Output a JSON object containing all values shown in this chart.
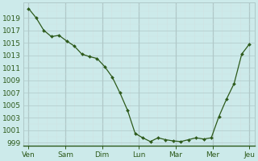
{
  "x_labels": [
    "Ven",
    "Sam",
    "Dim",
    "Lun",
    "Mar",
    "Mer",
    "Jeu"
  ],
  "values": [
    1020.5,
    1019.0,
    1017.0,
    1016.0,
    1016.2,
    1015.3,
    1014.5,
    1013.2,
    1012.8,
    1012.5,
    1011.2,
    1009.5,
    1007.0,
    1004.2,
    1000.5,
    999.8,
    999.2,
    999.8,
    999.5,
    999.3,
    999.2,
    999.5,
    999.8,
    999.6,
    999.8,
    1003.2,
    1006.0,
    1008.5,
    1013.2,
    1014.8
  ],
  "n_per_day": 4,
  "ylim": [
    998.5,
    1021.5
  ],
  "ytick_values": [
    999,
    1001,
    1003,
    1005,
    1007,
    1009,
    1011,
    1013,
    1015,
    1017,
    1019
  ],
  "line_color": "#2d5a1b",
  "marker_color": "#2d5a1b",
  "bg_color": "#cceaea",
  "grid_major_color": "#b0c8c8",
  "grid_minor_color": "#d0e4e4",
  "label_color": "#2d5a1b",
  "tick_label_fontsize": 6.5,
  "figsize": [
    3.2,
    2.0
  ],
  "dpi": 100
}
